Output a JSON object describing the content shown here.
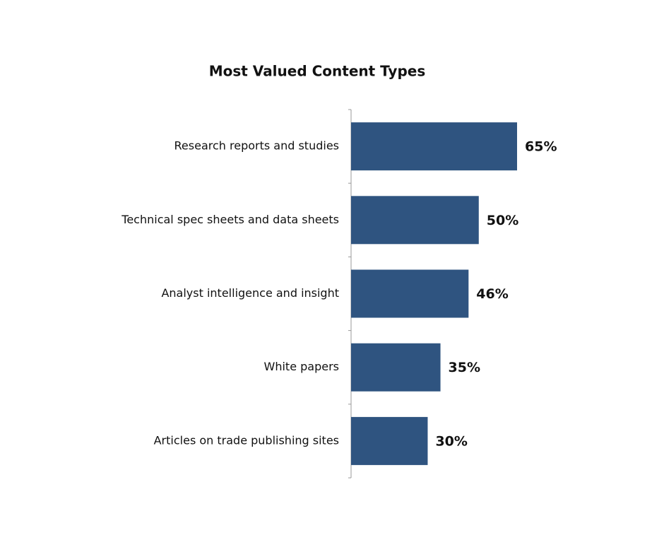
{
  "chart_data": {
    "type": "bar",
    "orientation": "horizontal",
    "title": "Most Valued Content Types",
    "categories": [
      "Research reports and studies",
      "Technical spec sheets and data sheets",
      "Analyst intelligence and insight",
      "White papers",
      "Articles on trade publishing sites"
    ],
    "values": [
      65,
      50,
      46,
      35,
      30
    ],
    "value_labels": [
      "65%",
      "50%",
      "46%",
      "35%",
      "30%"
    ],
    "color": "#2f5480"
  }
}
